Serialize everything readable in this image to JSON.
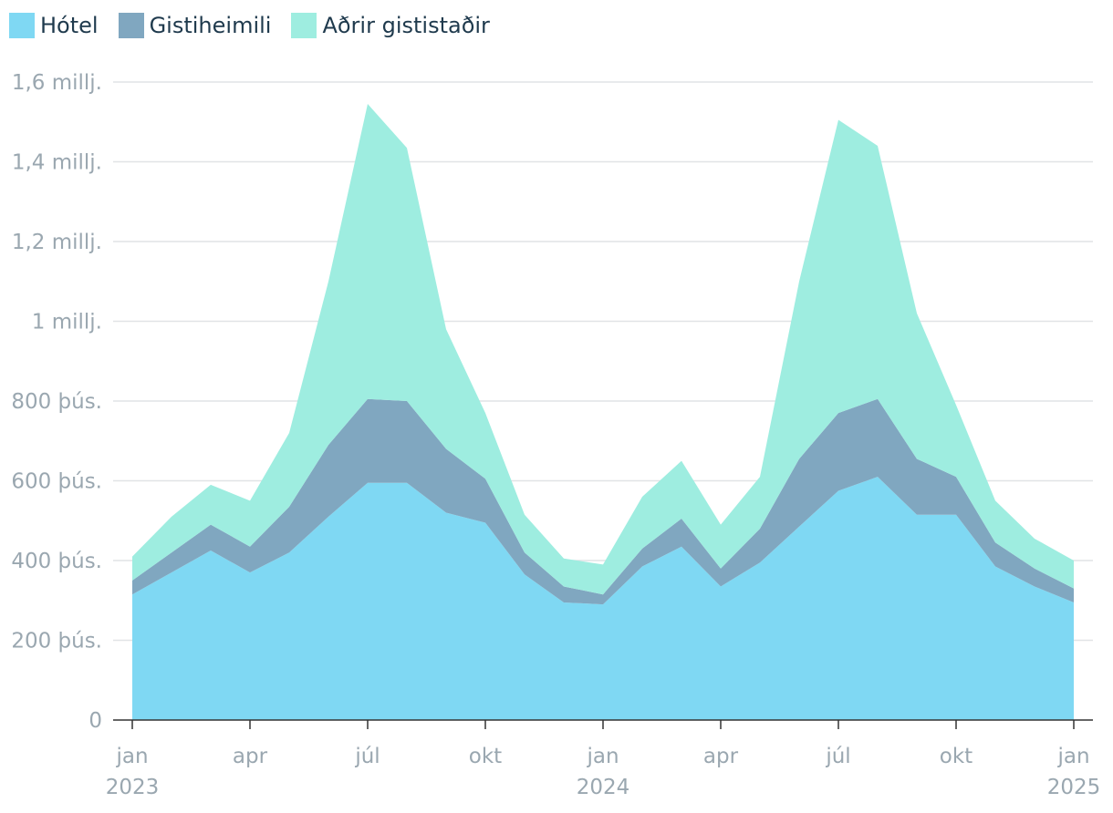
{
  "chart_data": {
    "type": "area",
    "stacked": true,
    "x": [
      "2023-01",
      "2023-02",
      "2023-03",
      "2023-04",
      "2023-05",
      "2023-06",
      "2023-07",
      "2023-08",
      "2023-09",
      "2023-10",
      "2023-11",
      "2023-12",
      "2024-01",
      "2024-02",
      "2024-03",
      "2024-04",
      "2024-05",
      "2024-06",
      "2024-07",
      "2024-08",
      "2024-09",
      "2024-10",
      "2024-11",
      "2024-12",
      "2025-01"
    ],
    "series": [
      {
        "name": "Hótel",
        "color": "#7fd8f3",
        "values": [
          315000,
          370000,
          425000,
          370000,
          420000,
          510000,
          595000,
          595000,
          520000,
          495000,
          365000,
          295000,
          290000,
          385000,
          435000,
          335000,
          395000,
          485000,
          575000,
          610000,
          515000,
          515000,
          385000,
          335000,
          295000
        ]
      },
      {
        "name": "Gistiheimili",
        "color": "#80a7c0",
        "values": [
          35000,
          50000,
          65000,
          65000,
          115000,
          180000,
          210000,
          205000,
          160000,
          110000,
          55000,
          40000,
          25000,
          45000,
          70000,
          45000,
          85000,
          170000,
          195000,
          195000,
          140000,
          95000,
          60000,
          45000,
          35000
        ]
      },
      {
        "name": "Aðrir gististaðir",
        "color": "#9eede0",
        "values": [
          60000,
          90000,
          100000,
          115000,
          185000,
          410000,
          740000,
          635000,
          300000,
          165000,
          95000,
          70000,
          75000,
          130000,
          145000,
          110000,
          130000,
          445000,
          735000,
          635000,
          365000,
          180000,
          105000,
          75000,
          70000
        ]
      }
    ],
    "yticks": [
      {
        "value": 0,
        "label": "0"
      },
      {
        "value": 200000,
        "label": "200 þús."
      },
      {
        "value": 400000,
        "label": "400 þús."
      },
      {
        "value": 600000,
        "label": "600 þús."
      },
      {
        "value": 800000,
        "label": "800 þús."
      },
      {
        "value": 1000000,
        "label": "1 millj."
      },
      {
        "value": 1200000,
        "label": "1,2 millj."
      },
      {
        "value": 1400000,
        "label": "1,4 millj."
      },
      {
        "value": 1600000,
        "label": "1,6 millj."
      }
    ],
    "ylim": [
      0,
      1600000
    ],
    "xticks": [
      {
        "x": "2023-01",
        "label": "jan",
        "year": "2023"
      },
      {
        "x": "2023-04",
        "label": "apr",
        "year": ""
      },
      {
        "x": "2023-07",
        "label": "júl",
        "year": ""
      },
      {
        "x": "2023-10",
        "label": "okt",
        "year": ""
      },
      {
        "x": "2024-01",
        "label": "jan",
        "year": "2024"
      },
      {
        "x": "2024-04",
        "label": "apr",
        "year": ""
      },
      {
        "x": "2024-07",
        "label": "júl",
        "year": ""
      },
      {
        "x": "2024-10",
        "label": "okt",
        "year": ""
      },
      {
        "x": "2025-01",
        "label": "jan",
        "year": "2025"
      }
    ],
    "grid": true,
    "legend_position": "top-left"
  }
}
